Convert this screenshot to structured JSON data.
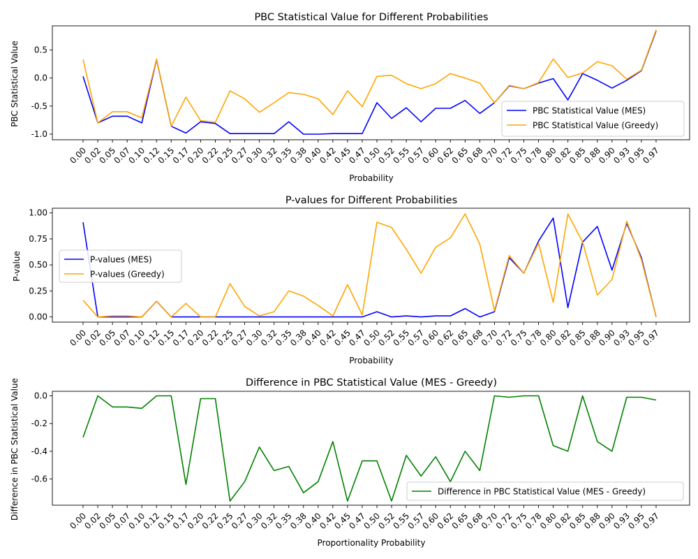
{
  "chart_data": [
    {
      "type": "line",
      "title": "PBC Statistical Value for Different Probabilities",
      "xlabel": "Probability",
      "ylabel": "PBC Statistical Value",
      "ylim": [
        -1.1,
        0.93
      ],
      "yticks": [
        "-1.0",
        "-0.5",
        "0.0",
        "0.5"
      ],
      "yticks_values": [
        -1.0,
        -0.5,
        0.0,
        0.5
      ],
      "legend_position": "lower-right",
      "grid": false,
      "series": [
        {
          "name": "PBC Statistical Value (MES)",
          "color": "#0000ff",
          "values": [
            0.03,
            -0.8,
            -0.68,
            -0.68,
            -0.8,
            0.33,
            -0.86,
            -0.98,
            -0.78,
            -0.81,
            -0.99,
            -0.99,
            -0.99,
            -0.99,
            -0.78,
            -1.0,
            -1.0,
            -0.99,
            -0.99,
            -0.99,
            -0.44,
            -0.72,
            -0.53,
            -0.78,
            -0.54,
            -0.54,
            -0.4,
            -0.63,
            -0.44,
            -0.14,
            -0.19,
            -0.09,
            -0.01,
            -0.39,
            0.08,
            -0.04,
            -0.18,
            -0.04,
            0.13,
            0.84
          ]
        },
        {
          "name": "PBC Statistical Value (Greedy)",
          "color": "#ffa500",
          "values": [
            0.33,
            -0.8,
            -0.6,
            -0.6,
            -0.71,
            0.34,
            -0.86,
            -0.34,
            -0.76,
            -0.79,
            -0.23,
            -0.37,
            -0.61,
            -0.44,
            -0.26,
            -0.29,
            -0.37,
            -0.65,
            -0.23,
            -0.51,
            0.03,
            0.05,
            -0.1,
            -0.19,
            -0.1,
            0.08,
            0.0,
            -0.09,
            -0.44,
            -0.13,
            -0.19,
            -0.08,
            0.34,
            0.01,
            0.09,
            0.29,
            0.22,
            -0.02,
            0.14,
            0.86
          ]
        }
      ]
    },
    {
      "type": "line",
      "title": "P-values for Different Probabilities",
      "xlabel": "Probability",
      "ylabel": "P-value",
      "ylim": [
        -0.05,
        1.045
      ],
      "yticks": [
        "0.00",
        "0.25",
        "0.50",
        "0.75",
        "1.00"
      ],
      "yticks_values": [
        0.0,
        0.25,
        0.5,
        0.75,
        1.0
      ],
      "legend_position": "center-left",
      "grid": false,
      "series": [
        {
          "name": "P-values (MES)",
          "color": "#0000ff",
          "values": [
            0.91,
            0.0,
            0.0,
            0.0,
            0.0,
            0.15,
            0.0,
            0.0,
            0.0,
            0.0,
            0.0,
            0.0,
            0.0,
            0.0,
            0.0,
            0.0,
            0.0,
            0.0,
            0.0,
            0.0,
            0.05,
            0.0,
            0.01,
            0.0,
            0.01,
            0.01,
            0.08,
            0.0,
            0.05,
            0.57,
            0.42,
            0.73,
            0.95,
            0.09,
            0.72,
            0.87,
            0.45,
            0.9,
            0.57,
            0.0
          ]
        },
        {
          "name": "P-values (Greedy)",
          "color": "#ffa500",
          "values": [
            0.16,
            0.0,
            0.01,
            0.01,
            0.0,
            0.15,
            0.0,
            0.13,
            0.0,
            0.0,
            0.32,
            0.1,
            0.01,
            0.05,
            0.25,
            0.2,
            0.11,
            0.01,
            0.31,
            0.02,
            0.91,
            0.86,
            0.65,
            0.42,
            0.67,
            0.76,
            0.99,
            0.7,
            0.06,
            0.59,
            0.42,
            0.71,
            0.14,
            0.99,
            0.72,
            0.21,
            0.36,
            0.92,
            0.55,
            0.0
          ]
        }
      ]
    },
    {
      "type": "line",
      "title": "Difference in PBC Statistical Value (MES - Greedy)",
      "xlabel": "Proportionality Probability",
      "ylabel": "Difference in PBC Statistical Value",
      "ylim": [
        -0.79,
        0.033
      ],
      "yticks": [
        "-0.6",
        "-0.4",
        "-0.2",
        "0.0"
      ],
      "yticks_values": [
        -0.6,
        -0.4,
        -0.2,
        0.0
      ],
      "legend_position": "lower-right",
      "grid": false,
      "series": [
        {
          "name": "Difference in PBC Statistical Value (MES - Greedy)",
          "color": "#008000",
          "values": [
            -0.3,
            0.0,
            -0.08,
            -0.08,
            -0.09,
            0.0,
            0.0,
            -0.64,
            -0.02,
            -0.02,
            -0.76,
            -0.62,
            -0.37,
            -0.54,
            -0.51,
            -0.7,
            -0.62,
            -0.33,
            -0.76,
            -0.47,
            -0.47,
            -0.76,
            -0.43,
            -0.58,
            -0.44,
            -0.62,
            -0.4,
            -0.54,
            0.0,
            -0.01,
            0.0,
            0.0,
            -0.36,
            -0.4,
            0.0,
            -0.33,
            -0.4,
            -0.01,
            -0.01,
            -0.03
          ]
        }
      ]
    }
  ],
  "categories": [
    "0.00",
    "0.02",
    "0.05",
    "0.07",
    "0.10",
    "0.12",
    "0.15",
    "0.17",
    "0.20",
    "0.22",
    "0.25",
    "0.27",
    "0.30",
    "0.32",
    "0.35",
    "0.38",
    "0.40",
    "0.42",
    "0.45",
    "0.47",
    "0.50",
    "0.52",
    "0.55",
    "0.57",
    "0.60",
    "0.62",
    "0.65",
    "0.68",
    "0.70",
    "0.72",
    "0.75",
    "0.78",
    "0.80",
    "0.82",
    "0.85",
    "0.88",
    "0.90",
    "0.93",
    "0.95",
    "0.97"
  ]
}
